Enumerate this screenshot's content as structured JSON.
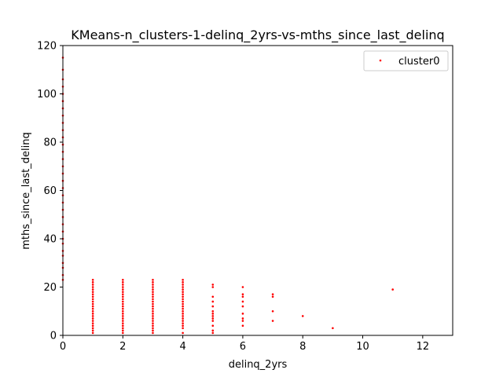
{
  "chart_data": {
    "type": "scatter",
    "title": "KMeans-n_clusters-1-delinq_2yrs-vs-mths_since_last_delinq",
    "xlabel": "delinq_2yrs",
    "ylabel": "mths_since_last_delinq",
    "xlim": [
      0,
      13
    ],
    "ylim": [
      0,
      120
    ],
    "xticks": [
      0,
      2,
      4,
      6,
      8,
      10,
      12
    ],
    "yticks": [
      0,
      20,
      40,
      60,
      80,
      100,
      120
    ],
    "grid": false,
    "legend_position": "top-right",
    "series": [
      {
        "name": "cluster0",
        "color": "#ff0000",
        "points": [
          [
            0,
            23
          ],
          [
            0,
            25
          ],
          [
            0,
            28
          ],
          [
            0,
            30
          ],
          [
            0,
            33
          ],
          [
            0,
            35
          ],
          [
            0,
            38
          ],
          [
            0,
            40
          ],
          [
            0,
            43
          ],
          [
            0,
            46
          ],
          [
            0,
            49
          ],
          [
            0,
            52
          ],
          [
            0,
            55
          ],
          [
            0,
            58
          ],
          [
            0,
            61
          ],
          [
            0,
            64
          ],
          [
            0,
            67
          ],
          [
            0,
            70
          ],
          [
            0,
            73
          ],
          [
            0,
            76
          ],
          [
            0,
            79
          ],
          [
            0,
            82
          ],
          [
            0,
            85
          ],
          [
            0,
            88
          ],
          [
            0,
            91
          ],
          [
            0,
            94
          ],
          [
            0,
            97
          ],
          [
            0,
            100
          ],
          [
            0,
            103
          ],
          [
            0,
            106
          ],
          [
            0,
            110
          ],
          [
            0,
            115
          ],
          [
            1,
            1
          ],
          [
            1,
            2
          ],
          [
            1,
            3
          ],
          [
            1,
            4
          ],
          [
            1,
            5
          ],
          [
            1,
            6
          ],
          [
            1,
            7
          ],
          [
            1,
            8
          ],
          [
            1,
            9
          ],
          [
            1,
            10
          ],
          [
            1,
            11
          ],
          [
            1,
            12
          ],
          [
            1,
            13
          ],
          [
            1,
            14
          ],
          [
            1,
            15
          ],
          [
            1,
            16
          ],
          [
            1,
            17
          ],
          [
            1,
            18
          ],
          [
            1,
            19
          ],
          [
            1,
            20
          ],
          [
            1,
            21
          ],
          [
            1,
            22
          ],
          [
            1,
            23
          ],
          [
            2,
            1
          ],
          [
            2,
            2
          ],
          [
            2,
            3
          ],
          [
            2,
            4
          ],
          [
            2,
            5
          ],
          [
            2,
            6
          ],
          [
            2,
            7
          ],
          [
            2,
            8
          ],
          [
            2,
            9
          ],
          [
            2,
            10
          ],
          [
            2,
            11
          ],
          [
            2,
            12
          ],
          [
            2,
            13
          ],
          [
            2,
            14
          ],
          [
            2,
            15
          ],
          [
            2,
            16
          ],
          [
            2,
            17
          ],
          [
            2,
            18
          ],
          [
            2,
            19
          ],
          [
            2,
            20
          ],
          [
            2,
            21
          ],
          [
            2,
            22
          ],
          [
            2,
            23
          ],
          [
            3,
            1
          ],
          [
            3,
            2
          ],
          [
            3,
            3
          ],
          [
            3,
            4
          ],
          [
            3,
            5
          ],
          [
            3,
            6
          ],
          [
            3,
            7
          ],
          [
            3,
            8
          ],
          [
            3,
            9
          ],
          [
            3,
            10
          ],
          [
            3,
            11
          ],
          [
            3,
            12
          ],
          [
            3,
            13
          ],
          [
            3,
            14
          ],
          [
            3,
            15
          ],
          [
            3,
            16
          ],
          [
            3,
            17
          ],
          [
            3,
            18
          ],
          [
            3,
            19
          ],
          [
            3,
            20
          ],
          [
            3,
            21
          ],
          [
            3,
            22
          ],
          [
            3,
            23
          ],
          [
            4,
            1
          ],
          [
            4,
            3
          ],
          [
            4,
            4
          ],
          [
            4,
            5
          ],
          [
            4,
            6
          ],
          [
            4,
            7
          ],
          [
            4,
            8
          ],
          [
            4,
            9
          ],
          [
            4,
            10
          ],
          [
            4,
            11
          ],
          [
            4,
            12
          ],
          [
            4,
            13
          ],
          [
            4,
            14
          ],
          [
            4,
            15
          ],
          [
            4,
            16
          ],
          [
            4,
            17
          ],
          [
            4,
            18
          ],
          [
            4,
            19
          ],
          [
            4,
            20
          ],
          [
            4,
            21
          ],
          [
            4,
            22
          ],
          [
            4,
            23
          ],
          [
            5,
            1
          ],
          [
            5,
            2
          ],
          [
            5,
            4
          ],
          [
            5,
            6
          ],
          [
            5,
            7
          ],
          [
            5,
            8
          ],
          [
            5,
            9
          ],
          [
            5,
            10
          ],
          [
            5,
            12
          ],
          [
            5,
            14
          ],
          [
            5,
            16
          ],
          [
            5,
            20
          ],
          [
            5,
            21
          ],
          [
            6,
            4
          ],
          [
            6,
            6
          ],
          [
            6,
            7
          ],
          [
            6,
            9
          ],
          [
            6,
            12
          ],
          [
            6,
            14
          ],
          [
            6,
            16
          ],
          [
            6,
            17
          ],
          [
            6,
            20
          ],
          [
            7,
            6
          ],
          [
            7,
            10
          ],
          [
            7,
            16
          ],
          [
            7,
            17
          ],
          [
            8,
            8
          ],
          [
            9,
            3
          ],
          [
            11,
            19
          ]
        ]
      }
    ]
  }
}
